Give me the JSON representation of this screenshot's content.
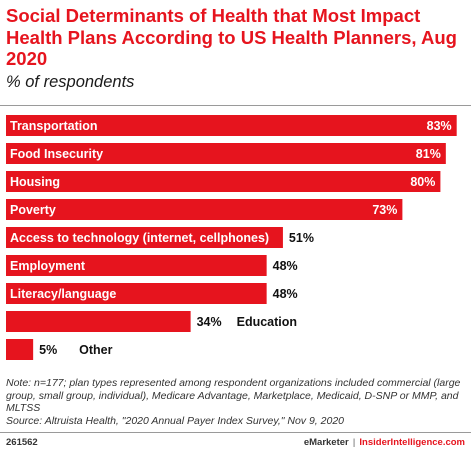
{
  "title": "Social Determinants of Health that Most Impact Health Plans According to US Health Planners, Aug 2020",
  "subtitle": "% of respondents",
  "notes": {
    "note": "Note: n=177; plan types represented among respondent organizations included commercial (large group, small group, individual), Medicare Advantage, Marketplace, Medicaid, D-SNP or MMP, and MLTSS",
    "source": "Source: Altruista Health, \"2020 Annual Payer Index Survey,\" Nov 9, 2020"
  },
  "footer": {
    "chart_id": "261562",
    "brand_emarketer": "eMarketer",
    "brand_separator": "|",
    "brand_ii": "InsiderIntelligence.com"
  },
  "colors": {
    "accent": "#e6141e",
    "text": "#111111"
  },
  "chart_data": {
    "type": "bar",
    "orientation": "horizontal",
    "categories": [
      "Transportation",
      "Food Insecurity",
      "Housing",
      "Poverty",
      "Access to technology (internet, cellphones)",
      "Employment",
      "Literacy/language",
      "Education",
      "Other"
    ],
    "values": [
      83,
      81,
      80,
      73,
      51,
      48,
      48,
      34,
      5
    ],
    "value_labels": [
      "83%",
      "81%",
      "80%",
      "73%",
      "51%",
      "48%",
      "48%",
      "34%",
      "5%"
    ],
    "xlim": [
      0,
      100
    ],
    "grid": false,
    "legend": "none",
    "color": "#e6141e"
  }
}
